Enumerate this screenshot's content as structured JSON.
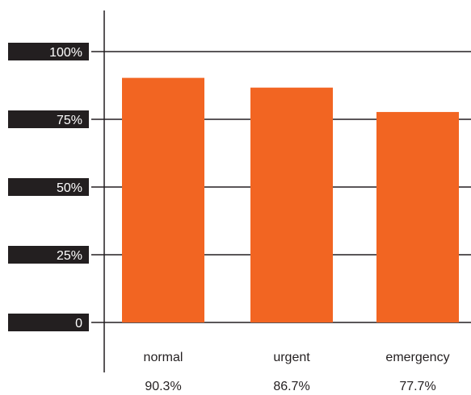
{
  "chart_data": {
    "type": "bar",
    "categories": [
      "normal",
      "urgent",
      "emergency"
    ],
    "values": [
      90.3,
      86.7,
      77.7
    ],
    "value_labels": [
      "90.3%",
      "86.7%",
      "77.7%"
    ],
    "ylim": [
      0,
      100
    ],
    "yticks": [
      0,
      25,
      50,
      75,
      100
    ],
    "ytick_labels": [
      "0",
      "25%",
      "50%",
      "75%",
      "100%"
    ],
    "grid": true,
    "legend": "none",
    "colors": {
      "bar": "#f26522",
      "tick_bg": "#231f20",
      "grid": "#231f20",
      "text": "#231f20"
    }
  }
}
